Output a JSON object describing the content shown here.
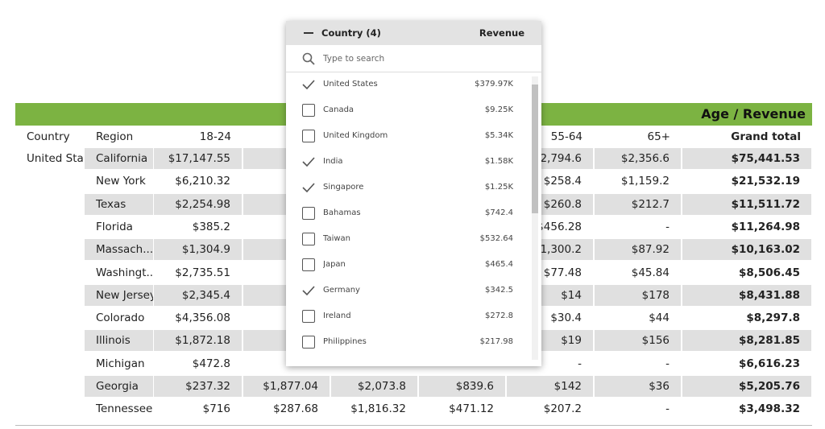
{
  "table": {
    "group_header": "Age / Revenue",
    "columns": [
      "Country",
      "Region",
      "18-24",
      null,
      null,
      null,
      "55-64",
      "65+",
      "Grand total"
    ],
    "rows": [
      [
        "United Sta...",
        "California",
        "$17,147.55",
        null,
        null,
        null,
        "$2,794.6",
        "$2,356.6",
        "$75,441.53"
      ],
      [
        null,
        "New York",
        "$6,210.32",
        null,
        null,
        null,
        "$258.4",
        "$1,159.2",
        "$21,532.19"
      ],
      [
        null,
        "Texas",
        "$2,254.98",
        null,
        null,
        null,
        "$260.8",
        "$212.7",
        "$11,511.72"
      ],
      [
        null,
        "Florida",
        "$385.2",
        null,
        null,
        null,
        "$456.28",
        "-",
        "$11,264.98"
      ],
      [
        null,
        "Massach...",
        "$1,304.9",
        null,
        null,
        null,
        "$1,300.2",
        "$87.92",
        "$10,163.02"
      ],
      [
        null,
        "Washingt...",
        "$2,735.51",
        null,
        null,
        null,
        "$77.48",
        "$45.84",
        "$8,506.45"
      ],
      [
        null,
        "New Jersey",
        "$2,345.4",
        null,
        null,
        null,
        "$14",
        "$178",
        "$8,431.88"
      ],
      [
        null,
        "Colorado",
        "$4,356.08",
        null,
        null,
        null,
        "$30.4",
        "$44",
        "$8,297.8"
      ],
      [
        null,
        "Illinois",
        "$1,872.18",
        null,
        null,
        null,
        "$19",
        "$156",
        "$8,281.85"
      ],
      [
        null,
        "Michigan",
        "$472.8",
        null,
        null,
        null,
        "-",
        "-",
        "$6,616.23"
      ],
      [
        null,
        "Georgia",
        "$237.32",
        "$1,877.04",
        "$2,073.8",
        "$839.6",
        "$142",
        "$36",
        "$5,205.76"
      ],
      [
        null,
        "Tennessee",
        "$716",
        "$287.68",
        "$1,816.32",
        "$471.12",
        "$207.2",
        "-",
        "$3,498.32"
      ]
    ]
  },
  "filter": {
    "title": "Country (4)",
    "measure": "Revenue",
    "search_placeholder": "Type to search",
    "items": [
      {
        "label": "United States",
        "value": "$379.97K",
        "checked": true
      },
      {
        "label": "Canada",
        "value": "$9.25K",
        "checked": false
      },
      {
        "label": "United Kingdom",
        "value": "$5.34K",
        "checked": false
      },
      {
        "label": "India",
        "value": "$1.58K",
        "checked": true
      },
      {
        "label": "Singapore",
        "value": "$1.25K",
        "checked": true
      },
      {
        "label": "Bahamas",
        "value": "$742.4",
        "checked": false
      },
      {
        "label": "Taiwan",
        "value": "$532.64",
        "checked": false
      },
      {
        "label": "Japan",
        "value": "$465.4",
        "checked": false
      },
      {
        "label": "Germany",
        "value": "$342.5",
        "checked": true
      },
      {
        "label": "Ireland",
        "value": "$272.8",
        "checked": false
      },
      {
        "label": "Philippines",
        "value": "$217.98",
        "checked": false
      }
    ]
  }
}
